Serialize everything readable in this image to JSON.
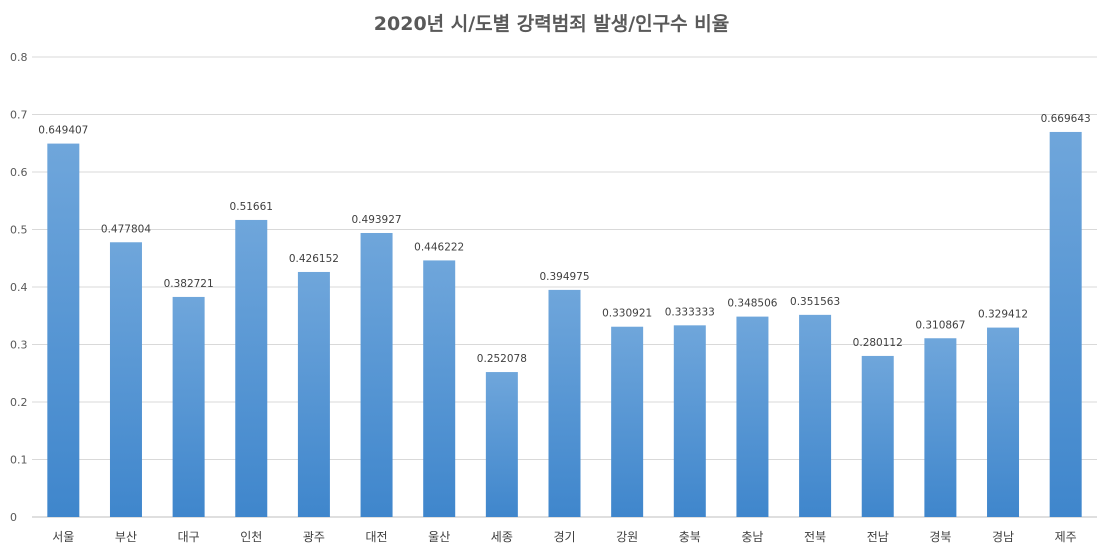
{
  "chart_data": {
    "type": "bar",
    "title": "2020년 시/도별 강력범죄 발생/인구수 비율",
    "xlabel": "",
    "ylabel": "",
    "ylim": [
      0,
      0.8
    ],
    "yticks": [
      0,
      0.1,
      0.2,
      0.3,
      0.4,
      0.5,
      0.6,
      0.7,
      0.8
    ],
    "ytick_labels": [
      "0",
      "0.1",
      "0.2",
      "0.3",
      "0.4",
      "0.5",
      "0.6",
      "0.7",
      "0.8"
    ],
    "grid": true,
    "legend": "none",
    "bar_color": "#5b9bd5",
    "categories": [
      "서울",
      "부산",
      "대구",
      "인천",
      "광주",
      "대전",
      "울산",
      "세종",
      "경기",
      "강원",
      "충북",
      "충남",
      "전북",
      "전남",
      "경북",
      "경남",
      "제주"
    ],
    "values": [
      0.649407,
      0.477804,
      0.382721,
      0.51661,
      0.426152,
      0.493927,
      0.446222,
      0.252078,
      0.394975,
      0.330921,
      0.333333,
      0.348506,
      0.351563,
      0.280112,
      0.310867,
      0.329412,
      0.669643
    ],
    "value_labels": [
      "0.649407",
      "0.477804",
      "0.382721",
      "0.51661",
      "0.426152",
      "0.493927",
      "0.446222",
      "0.252078",
      "0.394975",
      "0.330921",
      "0.333333",
      "0.348506",
      "0.351563",
      "0.280112",
      "0.310867",
      "0.329412",
      "0.669643"
    ]
  }
}
